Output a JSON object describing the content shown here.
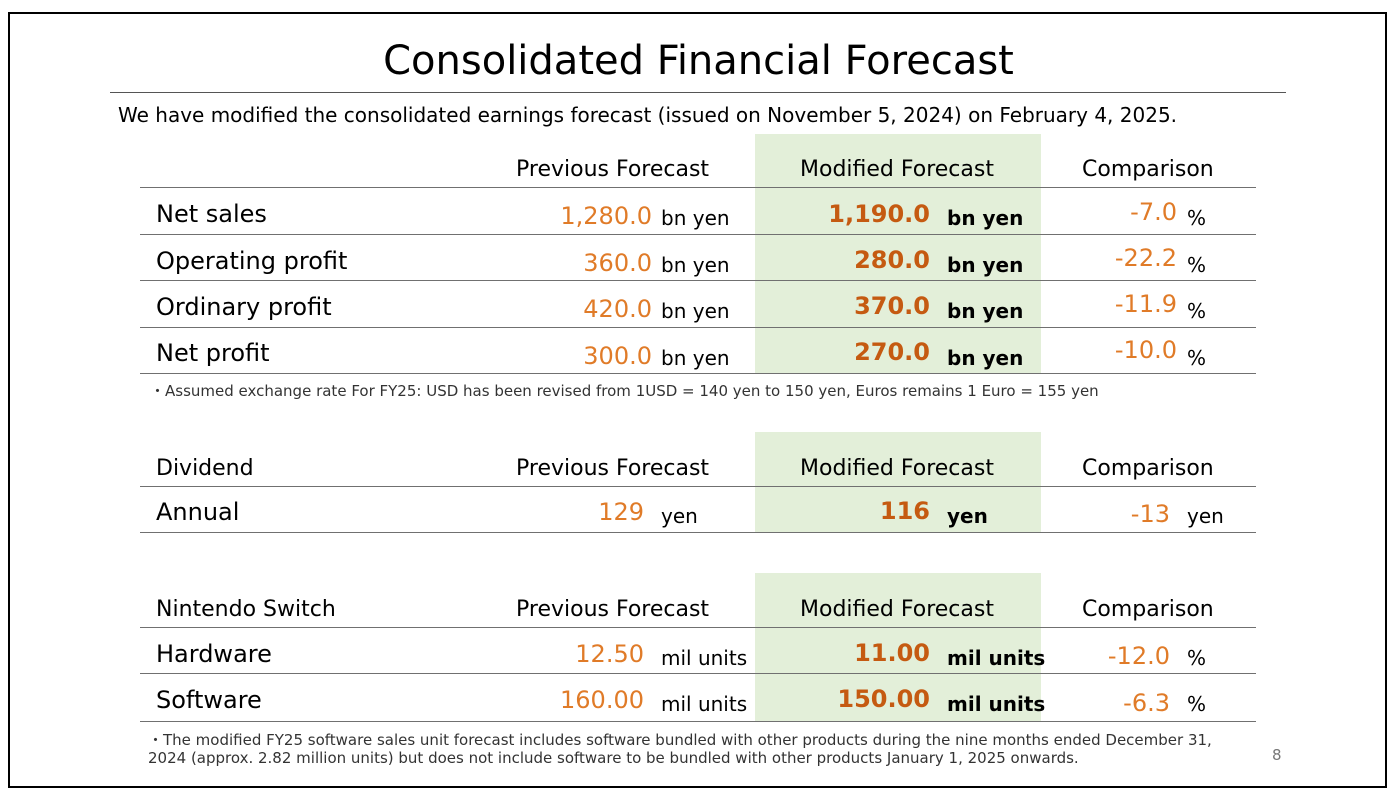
{
  "title": "Consolidated Financial Forecast",
  "intro": "We have modified the consolidated earnings forecast (issued on November 5, 2024) on February 4, 2025.",
  "colors": {
    "highlight_bg": "#e3efd9",
    "value_orange": "#e07b28",
    "value_bold": "#c55a11"
  },
  "earnings": {
    "headers": {
      "previous": "Previous Forecast",
      "modified": "Modified Forecast",
      "comparison": "Comparison"
    },
    "rows": [
      {
        "label": "Net sales",
        "prev": "1,280.0",
        "prev_unit": "bn yen",
        "mod": "1,190.0",
        "mod_unit": "bn yen",
        "cmp": "-7.0",
        "cmp_unit": "%"
      },
      {
        "label": "Operating profit",
        "prev": "360.0",
        "prev_unit": "bn yen",
        "mod": "280.0",
        "mod_unit": "bn yen",
        "cmp": "-22.2",
        "cmp_unit": "%"
      },
      {
        "label": "Ordinary profit",
        "prev": "420.0",
        "prev_unit": "bn yen",
        "mod": "370.0",
        "mod_unit": "bn yen",
        "cmp": "-11.9",
        "cmp_unit": "%"
      },
      {
        "label": "Net profit",
        "prev": "300.0",
        "prev_unit": "bn yen",
        "mod": "270.0",
        "mod_unit": "bn yen",
        "cmp": "-10.0",
        "cmp_unit": "%"
      }
    ],
    "note": "・Assumed exchange rate For FY25: USD has been revised from 1USD = 140 yen to 150 yen, Euros remains 1 Euro = 155 yen"
  },
  "dividend": {
    "headers": {
      "label": "Dividend",
      "previous": "Previous Forecast",
      "modified": "Modified Forecast",
      "comparison": "Comparison"
    },
    "rows": [
      {
        "label": "Annual",
        "prev": "129",
        "prev_unit": "yen",
        "mod": "116",
        "mod_unit": "yen",
        "cmp": "-13",
        "cmp_unit": "yen"
      }
    ]
  },
  "switch": {
    "headers": {
      "label": "Nintendo Switch",
      "previous": "Previous Forecast",
      "modified": "Modified Forecast",
      "comparison": "Comparison"
    },
    "rows": [
      {
        "label": "Hardware",
        "prev": "12.50",
        "prev_unit": "mil units",
        "mod": "11.00",
        "mod_unit": "mil units",
        "cmp": "-12.0",
        "cmp_unit": "%"
      },
      {
        "label": "Software",
        "prev": "160.00",
        "prev_unit": "mil units",
        "mod": "150.00",
        "mod_unit": "mil units",
        "cmp": "-6.3",
        "cmp_unit": "%"
      }
    ],
    "note_line1": "・The modified FY25 software sales unit forecast includes software bundled with other products during the nine months ended December 31,",
    "note_line2": "2024 (approx. 2.82 million units) but does not include software to be bundled with other products January 1, 2025 onwards."
  },
  "page_number": "8"
}
